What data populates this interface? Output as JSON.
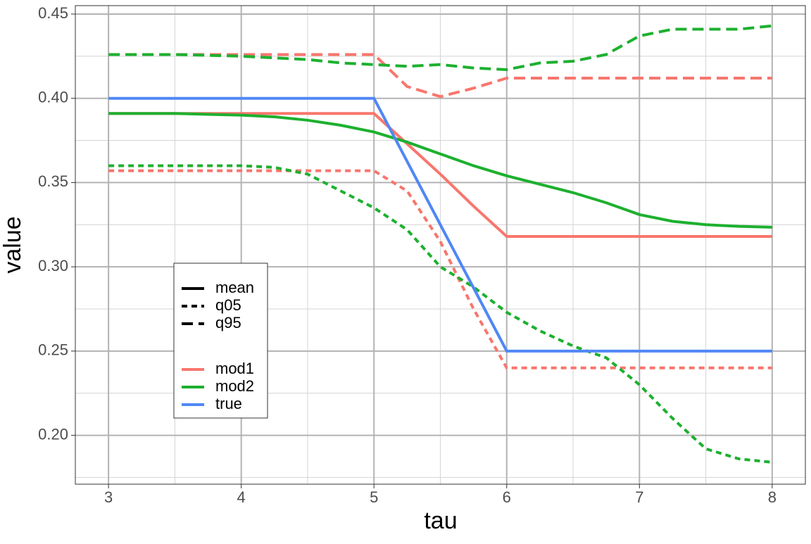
{
  "chart_data": {
    "type": "line",
    "xlabel": "tau",
    "ylabel": "value",
    "x": [
      3,
      3.25,
      3.5,
      3.75,
      4,
      4.25,
      4.5,
      4.75,
      5,
      5.25,
      5.5,
      5.75,
      6,
      6.25,
      6.5,
      6.75,
      7,
      7.25,
      7.5,
      7.75,
      8
    ],
    "xlim": [
      2.75,
      8.25
    ],
    "ylim": [
      0.171,
      0.455
    ],
    "xticks": [
      3,
      4,
      5,
      6,
      7,
      8
    ],
    "yticks": [
      {
        "value": 0.2,
        "label": "0.20"
      },
      0.25,
      {
        "value": 0.3,
        "label": "0.30"
      },
      0.35,
      {
        "value": 0.4,
        "label": "0.40"
      },
      0.45
    ],
    "minor_xticks": [
      3.5,
      4.5,
      5.5,
      6.5,
      7.5
    ],
    "minor_yticks": [
      0.175,
      0.225,
      0.275,
      0.325,
      0.375,
      0.425
    ],
    "grid": true,
    "linetypes": [
      {
        "name": "mean",
        "dash": "solid"
      },
      {
        "name": "q05",
        "dash": "dotted"
      },
      {
        "name": "q95",
        "dash": "dashed"
      }
    ],
    "groups": [
      {
        "name": "mod1",
        "color": "#F8766D",
        "lines": {
          "mean": [
            0.391,
            0.391,
            0.391,
            0.391,
            0.391,
            0.391,
            0.391,
            0.391,
            0.391,
            0.373,
            0.355,
            0.336,
            0.318,
            0.318,
            0.318,
            0.318,
            0.318,
            0.318,
            0.318,
            0.318,
            0.318
          ],
          "q05": [
            0.357,
            0.357,
            0.357,
            0.357,
            0.357,
            0.357,
            0.357,
            0.357,
            0.357,
            0.345,
            0.315,
            0.275,
            0.24,
            0.24,
            0.24,
            0.24,
            0.24,
            0.24,
            0.24,
            0.24,
            0.24
          ],
          "q95": [
            0.426,
            0.426,
            0.426,
            0.426,
            0.426,
            0.426,
            0.426,
            0.426,
            0.426,
            0.407,
            0.401,
            0.406,
            0.412,
            0.412,
            0.412,
            0.412,
            0.412,
            0.412,
            0.412,
            0.412,
            0.412
          ]
        }
      },
      {
        "name": "mod2",
        "color": "#1DB02F",
        "lines": {
          "mean": [
            0.391,
            0.391,
            0.391,
            0.3905,
            0.39,
            0.389,
            0.387,
            0.384,
            0.38,
            0.374,
            0.367,
            0.36,
            0.354,
            0.349,
            0.344,
            0.338,
            0.331,
            0.327,
            0.325,
            0.324,
            0.3235
          ],
          "q05": [
            0.36,
            0.36,
            0.36,
            0.36,
            0.36,
            0.359,
            0.355,
            0.345,
            0.335,
            0.322,
            0.3,
            0.288,
            0.273,
            0.262,
            0.253,
            0.246,
            0.23,
            0.21,
            0.192,
            0.186,
            0.184
          ],
          "q95": [
            0.426,
            0.426,
            0.426,
            0.4255,
            0.425,
            0.424,
            0.423,
            0.421,
            0.42,
            0.419,
            0.42,
            0.418,
            0.417,
            0.421,
            0.422,
            0.426,
            0.437,
            0.441,
            0.441,
            0.441,
            0.443
          ]
        }
      },
      {
        "name": "true",
        "color": "#5087F5",
        "lines": {
          "mean": [
            0.4,
            0.4,
            0.4,
            0.4,
            0.4,
            0.4,
            0.4,
            0.4,
            0.4,
            0.3625,
            0.325,
            0.2875,
            0.25,
            0.25,
            0.25,
            0.25,
            0.25,
            0.25,
            0.25,
            0.25,
            0.25
          ]
        }
      }
    ]
  }
}
